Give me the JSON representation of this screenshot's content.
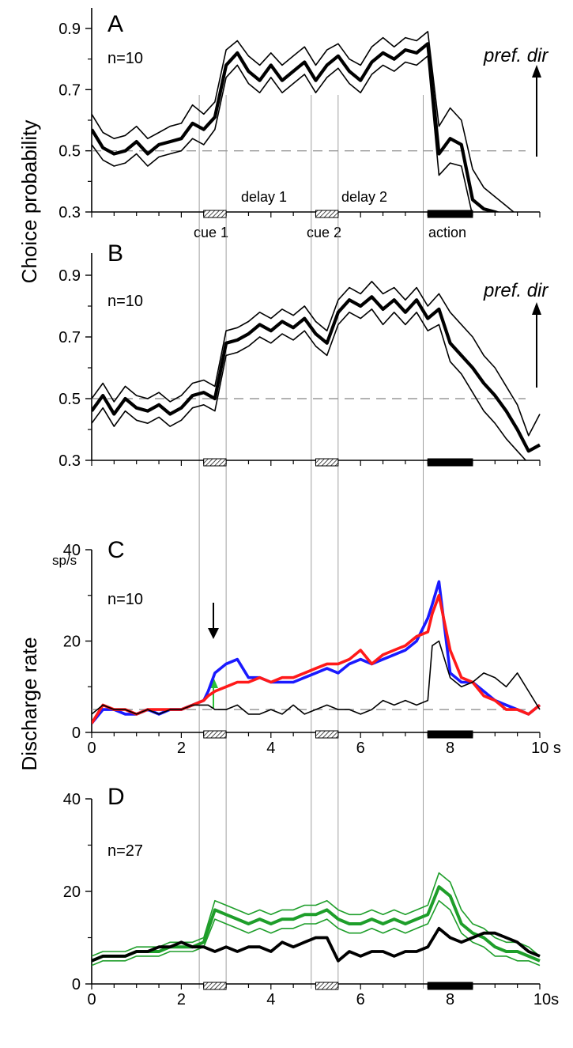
{
  "y_axis_labels": {
    "top": "Choice probability",
    "bottom": "Discharge rate"
  },
  "epoch_labels": {
    "cue1": "cue 1",
    "delay1": "delay 1",
    "cue2": "cue 2",
    "delay2": "delay 2",
    "action": "action"
  },
  "pref_dir_label": "pref. dir",
  "colors": {
    "blue": "#1a1aff",
    "red": "#ff1a1a",
    "green": "#1e9e2a",
    "black": "#000000",
    "grid_line": "#888888",
    "dashed": "#999999"
  },
  "epochs": {
    "cue1": [
      2.5,
      3.0
    ],
    "cue2": [
      5.0,
      5.5
    ],
    "action": [
      7.5,
      8.5
    ],
    "cue_style": "hatched",
    "action_style": "solid"
  },
  "vertical_markers_s": [
    2.4,
    3.0,
    4.9,
    5.5,
    7.4
  ],
  "chart_data": [
    {
      "panel": "A",
      "type": "line",
      "n_label": "n=10",
      "ylim": [
        0.3,
        0.95
      ],
      "yticks": [
        "0.3",
        "0.5",
        "0.7",
        "0.9"
      ],
      "xlim": [
        0,
        10
      ],
      "reference_line": 0.5,
      "x": [
        0,
        0.25,
        0.5,
        0.75,
        1,
        1.25,
        1.5,
        1.75,
        2,
        2.25,
        2.5,
        2.75,
        3,
        3.25,
        3.5,
        3.75,
        4,
        4.25,
        4.5,
        4.75,
        5,
        5.25,
        5.5,
        5.75,
        6,
        6.25,
        6.5,
        6.75,
        7,
        7.25,
        7.5,
        7.75,
        8,
        8.25,
        8.5,
        8.75,
        9,
        9.25,
        9.5,
        9.75
      ],
      "series": [
        {
          "role": "mean",
          "values": [
            0.57,
            0.51,
            0.49,
            0.5,
            0.53,
            0.49,
            0.52,
            0.53,
            0.54,
            0.59,
            0.57,
            0.61,
            0.78,
            0.82,
            0.76,
            0.73,
            0.78,
            0.73,
            0.76,
            0.79,
            0.73,
            0.78,
            0.81,
            0.76,
            0.73,
            0.79,
            0.82,
            0.8,
            0.83,
            0.82,
            0.85,
            0.49,
            0.54,
            0.52,
            0.34,
            0.31,
            0.3,
            0.28,
            0.25,
            0.22
          ]
        },
        {
          "role": "upper",
          "values": [
            0.62,
            0.56,
            0.54,
            0.55,
            0.58,
            0.54,
            0.56,
            0.58,
            0.59,
            0.65,
            0.62,
            0.66,
            0.83,
            0.86,
            0.81,
            0.78,
            0.82,
            0.78,
            0.81,
            0.84,
            0.78,
            0.83,
            0.85,
            0.8,
            0.78,
            0.84,
            0.87,
            0.84,
            0.87,
            0.86,
            0.89,
            0.58,
            0.64,
            0.6,
            0.44,
            0.38,
            0.35,
            0.32,
            0.29,
            0.26
          ]
        },
        {
          "role": "lower",
          "values": [
            0.52,
            0.47,
            0.45,
            0.46,
            0.49,
            0.45,
            0.48,
            0.49,
            0.5,
            0.54,
            0.52,
            0.57,
            0.74,
            0.78,
            0.72,
            0.69,
            0.74,
            0.69,
            0.72,
            0.75,
            0.69,
            0.74,
            0.77,
            0.72,
            0.69,
            0.75,
            0.78,
            0.76,
            0.79,
            0.78,
            0.81,
            0.42,
            0.46,
            0.45,
            0.28,
            0.26,
            0.25,
            0.24,
            0.22,
            0.2
          ]
        }
      ]
    },
    {
      "panel": "B",
      "type": "line",
      "n_label": "n=10",
      "ylim": [
        0.3,
        0.95
      ],
      "yticks": [
        "0.3",
        "0.5",
        "0.7",
        "0.9"
      ],
      "xlim": [
        0,
        10
      ],
      "reference_line": 0.5,
      "x": [
        0,
        0.25,
        0.5,
        0.75,
        1,
        1.25,
        1.5,
        1.75,
        2,
        2.25,
        2.5,
        2.75,
        3,
        3.25,
        3.5,
        3.75,
        4,
        4.25,
        4.5,
        4.75,
        5,
        5.25,
        5.5,
        5.75,
        6,
        6.25,
        6.5,
        6.75,
        7,
        7.25,
        7.5,
        7.75,
        8,
        8.25,
        8.5,
        8.75,
        9,
        9.25,
        9.5,
        9.75,
        10
      ],
      "series": [
        {
          "role": "mean",
          "values": [
            0.46,
            0.51,
            0.45,
            0.5,
            0.47,
            0.46,
            0.48,
            0.45,
            0.47,
            0.51,
            0.52,
            0.5,
            0.68,
            0.69,
            0.71,
            0.74,
            0.72,
            0.75,
            0.73,
            0.76,
            0.71,
            0.68,
            0.78,
            0.82,
            0.8,
            0.83,
            0.79,
            0.82,
            0.78,
            0.82,
            0.76,
            0.79,
            0.68,
            0.64,
            0.6,
            0.55,
            0.51,
            0.46,
            0.4,
            0.33,
            0.35
          ]
        },
        {
          "role": "upper",
          "values": [
            0.5,
            0.55,
            0.49,
            0.54,
            0.51,
            0.5,
            0.52,
            0.49,
            0.51,
            0.55,
            0.56,
            0.54,
            0.72,
            0.73,
            0.75,
            0.78,
            0.76,
            0.79,
            0.77,
            0.8,
            0.75,
            0.72,
            0.82,
            0.86,
            0.84,
            0.88,
            0.84,
            0.86,
            0.82,
            0.86,
            0.8,
            0.84,
            0.78,
            0.74,
            0.7,
            0.64,
            0.6,
            0.54,
            0.48,
            0.38,
            0.45
          ]
        },
        {
          "role": "lower",
          "values": [
            0.42,
            0.47,
            0.41,
            0.46,
            0.43,
            0.42,
            0.44,
            0.41,
            0.43,
            0.47,
            0.48,
            0.46,
            0.64,
            0.65,
            0.67,
            0.7,
            0.68,
            0.71,
            0.69,
            0.72,
            0.67,
            0.64,
            0.74,
            0.78,
            0.76,
            0.79,
            0.74,
            0.78,
            0.74,
            0.78,
            0.72,
            0.74,
            0.62,
            0.58,
            0.52,
            0.46,
            0.42,
            0.37,
            0.33,
            0.29,
            0.3
          ]
        }
      ]
    },
    {
      "panel": "C",
      "type": "line",
      "n_label": "n=10",
      "unit_label": "sp/s",
      "ylim": [
        0,
        40
      ],
      "yticks": [
        "0",
        "20",
        "40"
      ],
      "xlim": [
        0,
        10
      ],
      "xticks": [
        "0",
        "2",
        "4",
        "6",
        "8",
        "10 s"
      ],
      "reference_line": 5,
      "x": [
        0,
        0.25,
        0.5,
        0.75,
        1,
        1.25,
        1.5,
        1.75,
        2,
        2.25,
        2.5,
        2.6,
        2.75,
        3,
        3.25,
        3.5,
        3.75,
        4,
        4.25,
        4.5,
        4.75,
        5,
        5.25,
        5.5,
        5.75,
        6,
        6.25,
        6.5,
        6.75,
        7,
        7.25,
        7.5,
        7.6,
        7.75,
        8,
        8.25,
        8.5,
        8.75,
        9,
        9.25,
        9.5,
        9.75,
        10
      ],
      "series": [
        {
          "color": "blue",
          "values": [
            2,
            5,
            5,
            4,
            4,
            5,
            4,
            5,
            5,
            6,
            7,
            9,
            13,
            15,
            16,
            12,
            12,
            11,
            11,
            11,
            12,
            13,
            14,
            13,
            15,
            16,
            15,
            16,
            17,
            18,
            20,
            25,
            28,
            33,
            13,
            11,
            11,
            9,
            7,
            6,
            5,
            4,
            6
          ]
        },
        {
          "color": "red",
          "values": [
            2,
            6,
            5,
            5,
            4,
            5,
            5,
            5,
            5,
            6,
            7,
            8,
            9,
            10,
            11,
            11,
            12,
            11,
            12,
            12,
            13,
            14,
            15,
            15,
            16,
            18,
            15,
            17,
            18,
            19,
            21,
            22,
            26,
            30,
            18,
            12,
            11,
            8,
            7,
            5,
            5,
            4,
            6
          ]
        },
        {
          "color": "black",
          "values": [
            4,
            6,
            5,
            5,
            4,
            5,
            4,
            5,
            5,
            6,
            6,
            6,
            5,
            5,
            6,
            4,
            4,
            5,
            4,
            6,
            4,
            5,
            6,
            5,
            5,
            4,
            5,
            7,
            6,
            7,
            6,
            7,
            19,
            20,
            12,
            10,
            11,
            13,
            12,
            10,
            13,
            9,
            5
          ]
        }
      ]
    },
    {
      "panel": "D",
      "type": "line",
      "n_label": "n=27",
      "ylim": [
        0,
        40
      ],
      "yticks": [
        "0",
        "20",
        "40"
      ],
      "xlim": [
        0,
        10
      ],
      "xticks": [
        "0",
        "2",
        "4",
        "6",
        "8",
        "10s"
      ],
      "x": [
        0,
        0.25,
        0.5,
        0.75,
        1,
        1.25,
        1.5,
        1.75,
        2,
        2.25,
        2.5,
        2.75,
        3,
        3.25,
        3.5,
        3.75,
        4,
        4.25,
        4.5,
        4.75,
        5,
        5.25,
        5.5,
        5.75,
        6,
        6.25,
        6.5,
        6.75,
        7,
        7.25,
        7.5,
        7.75,
        8,
        8.25,
        8.5,
        8.75,
        9,
        9.25,
        9.5,
        9.75,
        10
      ],
      "series": [
        {
          "color": "green",
          "role": "mean",
          "values": [
            5,
            6,
            6,
            6,
            7,
            7,
            7,
            8,
            8,
            8,
            9,
            16,
            15,
            14,
            13,
            14,
            13,
            14,
            14,
            15,
            15,
            16,
            14,
            13,
            13,
            14,
            13,
            14,
            13,
            14,
            15,
            21,
            19,
            13,
            11,
            10,
            8,
            7,
            7,
            6,
            5
          ]
        },
        {
          "color": "green",
          "role": "upper",
          "values": [
            6,
            7,
            7,
            7,
            8,
            8,
            8,
            9,
            9,
            9,
            10,
            18,
            17,
            16,
            15,
            16,
            15,
            16,
            16,
            17,
            17,
            18,
            16,
            15,
            15,
            16,
            15,
            16,
            15,
            16,
            17,
            24,
            22,
            16,
            13,
            12,
            10,
            9,
            9,
            8,
            6
          ]
        },
        {
          "color": "green",
          "role": "lower",
          "values": [
            4,
            5,
            5,
            5,
            6,
            6,
            6,
            7,
            7,
            7,
            8,
            14,
            13,
            12,
            11,
            12,
            11,
            12,
            12,
            13,
            13,
            14,
            12,
            11,
            11,
            12,
            11,
            12,
            11,
            12,
            13,
            18,
            16,
            11,
            9,
            8,
            6,
            6,
            5,
            5,
            4
          ]
        },
        {
          "color": "black",
          "values": [
            5,
            6,
            6,
            6,
            7,
            7,
            8,
            8,
            9,
            8,
            8,
            7,
            8,
            7,
            8,
            8,
            7,
            9,
            8,
            9,
            10,
            10,
            5,
            7,
            6,
            7,
            7,
            6,
            7,
            7,
            8,
            12,
            10,
            9,
            10,
            11,
            11,
            10,
            9,
            7,
            6
          ]
        }
      ]
    }
  ]
}
